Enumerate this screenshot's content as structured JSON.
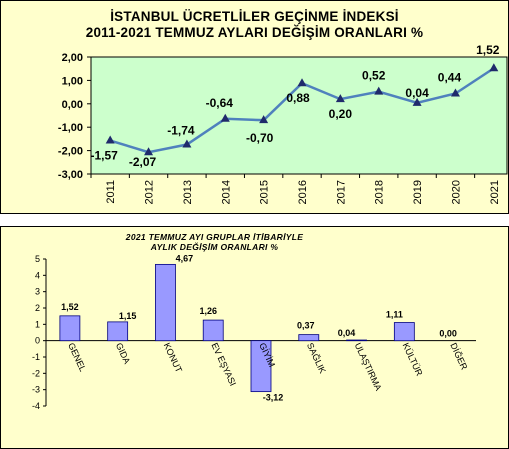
{
  "chart_data": [
    {
      "type": "line",
      "title": "İSTANBUL ÜCRETLİLER GEÇİNME İNDEKSİ",
      "subtitle": "2011-2021 TEMMUZ AYLARI DEĞİŞİM ORANLARI %",
      "categories": [
        "2011",
        "2012",
        "2013",
        "2014",
        "2015",
        "2016",
        "2017",
        "2018",
        "2019",
        "2020",
        "2021"
      ],
      "values": [
        -1.57,
        -2.07,
        -1.74,
        -0.64,
        -0.7,
        0.88,
        0.2,
        0.52,
        0.04,
        0.44,
        1.52
      ],
      "value_labels": [
        "-1,57",
        "-2,07",
        "-1,74",
        "-0,64",
        "-0,70",
        "0,88",
        "0,20",
        "0,52",
        "0,04",
        "0,44",
        "1,52"
      ],
      "y_ticks": [
        "2,00",
        "1,00",
        "0,00",
        "-1,00",
        "-2,00",
        "-3,00"
      ],
      "ylim": [
        -3,
        2
      ],
      "grid": false,
      "colors": {
        "line": "#4f81bd",
        "marker": "#1f2a6b",
        "plot_bg": "#ccffcc"
      }
    },
    {
      "type": "bar",
      "title": "2021 TEMMUZ AYI GRUPLAR İTİBARİYLE",
      "subtitle": "AYLIK DEĞİŞİM ORANLARI %",
      "categories": [
        "GENEL",
        "GIDA",
        "KONUT",
        "EV EŞYASI",
        "GİYİM",
        "SAĞLIK",
        "ULAŞTIRMA",
        "KÜLTÜR",
        "DİĞER"
      ],
      "values": [
        1.52,
        1.15,
        4.67,
        1.26,
        -3.12,
        0.37,
        0.04,
        1.11,
        0.0
      ],
      "value_labels": [
        "1,52",
        "1,15",
        "4,67",
        "1,26",
        "-3,12",
        "0,37",
        "0,04",
        "1,11",
        "0,00"
      ],
      "y_ticks": [
        "5",
        "4",
        "3",
        "2",
        "1",
        "0",
        "-1",
        "-2",
        "-3",
        "-4"
      ],
      "ylim": [
        -4,
        5
      ],
      "grid": false,
      "colors": {
        "bar": "#9999ff",
        "bar_stroke": "#000080"
      }
    }
  ]
}
